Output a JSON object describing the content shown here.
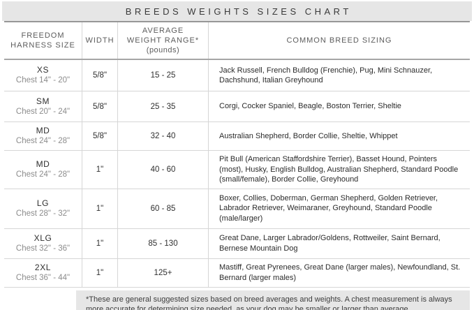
{
  "title": "BREEDS WEIGHTS SIZES CHART",
  "colors": {
    "band_bg": "#e6e6e6",
    "footnote_bg": "#e6e6e6",
    "grid_line": "#d6d6d6",
    "header_rule": "#979797",
    "title_text": "#3a3a3a"
  },
  "header": {
    "size": "FREEDOM HARNESS SIZE",
    "width": "WIDTH",
    "weight_line1": "AVERAGE",
    "weight_line2": "WEIGHT RANGE*",
    "weight_line3": "(pounds)",
    "breeds": "COMMON BREED SIZING"
  },
  "chart_data": {
    "type": "table",
    "title": "BREEDS WEIGHTS SIZES CHART",
    "columns": [
      "FREEDOM HARNESS SIZE",
      "WIDTH",
      "AVERAGE WEIGHT RANGE* (pounds)",
      "COMMON BREED SIZING"
    ],
    "rows": [
      {
        "size": "XS",
        "chest": "Chest 14\" - 20\"",
        "width": "5/8\"",
        "weight": "15 - 25",
        "breeds": "Jack Russell, French Bulldog (Frenchie), Pug, Mini Schnauzer, Dachshund, Italian Greyhound"
      },
      {
        "size": "SM",
        "chest": "Chest 20\" - 24\"",
        "width": "5/8\"",
        "weight": "25 - 35",
        "breeds": "Corgi, Cocker Spaniel, Beagle, Boston Terrier, Sheltie"
      },
      {
        "size": "MD",
        "chest": "Chest 24\" - 28\"",
        "width": "5/8\"",
        "weight": "32 - 40",
        "breeds": "Australian Shepherd, Border Collie, Sheltie, Whippet"
      },
      {
        "size": "MD",
        "chest": "Chest 24\" - 28\"",
        "width": "1\"",
        "weight": "40 - 60",
        "breeds": "Pit Bull (American Staffordshire Terrier), Basset Hound, Pointers (most), Husky, English Bulldog, Australian Shepherd, Standard Poodle (small/female), Border Collie, Greyhound"
      },
      {
        "size": "LG",
        "chest": "Chest 28\" - 32\"",
        "width": "1\"",
        "weight": "60 - 85",
        "breeds": "Boxer, Collies, Doberman, German Shepherd, Golden Retriever, Labrador Retriever, Weimaraner, Greyhound, Standard Poodle (male/larger)"
      },
      {
        "size": "XLG",
        "chest": "Chest 32\" - 36\"",
        "width": "1\"",
        "weight": "85 - 130",
        "breeds": "Great Dane, Larger Labrador/Goldens, Rottweiler, Saint Bernard, Bernese Mountain Dog"
      },
      {
        "size": "2XL",
        "chest": "Chest 36\" - 44\"",
        "width": "1\"",
        "weight": "125+",
        "breeds": "Mastiff, Great Pyrenees, Great Dane (larger males), Newfoundland, St. Bernard (larger males)"
      }
    ]
  },
  "footnote": "*These are general suggested sizes based on breed averages and weights.  A chest measurement is always more accurate for determining size needed, as your dog may be smaller or larger than average."
}
